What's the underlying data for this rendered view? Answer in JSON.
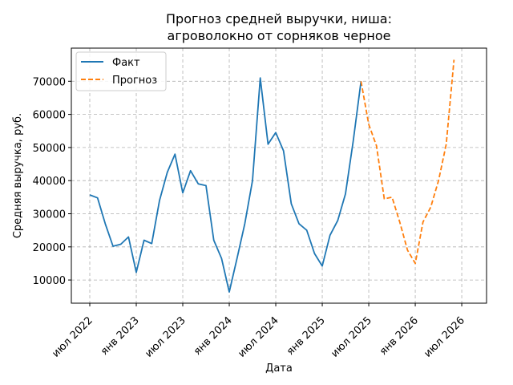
{
  "chart_data": {
    "type": "line",
    "title_line1": "Прогноз средней выручки, ниша:",
    "title_line2": "агроволокно от сорняков черное",
    "xlabel": "Дата",
    "ylabel": "Средняя выручка, руб.",
    "x_ticks": [
      "июл 2022",
      "янв 2023",
      "июл 2023",
      "янв 2024",
      "июл 2024",
      "янв 2025",
      "июл 2025",
      "янв 2026",
      "июл 2026"
    ],
    "y_ticks": [
      "10000",
      "20000",
      "30000",
      "40000",
      "50000",
      "60000",
      "70000"
    ],
    "ylim": [
      3000,
      80000
    ],
    "grid": true,
    "legend_position": "top-left",
    "colors": {
      "fact": "#1f77b4",
      "forecast": "#ff7f0e",
      "grid": "#b0b0b0"
    },
    "series": [
      {
        "name": "Факт",
        "style": "solid",
        "points": [
          [
            "2022-07",
            35700
          ],
          [
            "2022-08",
            34800
          ],
          [
            "2022-09",
            27000
          ],
          [
            "2022-10",
            20200
          ],
          [
            "2022-11",
            20800
          ],
          [
            "2022-12",
            23000
          ],
          [
            "2023-01",
            12300
          ],
          [
            "2023-02",
            22000
          ],
          [
            "2023-03",
            21000
          ],
          [
            "2023-04",
            34000
          ],
          [
            "2023-05",
            42500
          ],
          [
            "2023-06",
            48000
          ],
          [
            "2023-07",
            36300
          ],
          [
            "2023-08",
            43000
          ],
          [
            "2023-09",
            39000
          ],
          [
            "2023-10",
            38500
          ],
          [
            "2023-11",
            22000
          ],
          [
            "2023-12",
            16500
          ],
          [
            "2024-01",
            6400
          ],
          [
            "2024-02",
            16500
          ],
          [
            "2024-03",
            27000
          ],
          [
            "2024-04",
            40000
          ],
          [
            "2024-05",
            71000
          ],
          [
            "2024-06",
            51000
          ],
          [
            "2024-07",
            54500
          ],
          [
            "2024-08",
            49000
          ],
          [
            "2024-09",
            33000
          ],
          [
            "2024-10",
            27000
          ],
          [
            "2024-11",
            25000
          ],
          [
            "2024-12",
            18000
          ],
          [
            "2025-01",
            14200
          ],
          [
            "2025-02",
            23500
          ],
          [
            "2025-03",
            28000
          ],
          [
            "2025-04",
            36000
          ],
          [
            "2025-05",
            52000
          ],
          [
            "2025-06",
            70000
          ]
        ]
      },
      {
        "name": "Прогноз",
        "style": "dashed",
        "points": [
          [
            "2025-06",
            70000
          ],
          [
            "2025-07",
            57000
          ],
          [
            "2025-08",
            50500
          ],
          [
            "2025-09",
            34500
          ],
          [
            "2025-10",
            35000
          ],
          [
            "2025-11",
            27500
          ],
          [
            "2025-12",
            19000
          ],
          [
            "2026-01",
            15000
          ],
          [
            "2026-02",
            27500
          ],
          [
            "2026-03",
            32000
          ],
          [
            "2026-04",
            40000
          ],
          [
            "2026-05",
            51000
          ],
          [
            "2026-06",
            76500
          ]
        ]
      }
    ]
  }
}
